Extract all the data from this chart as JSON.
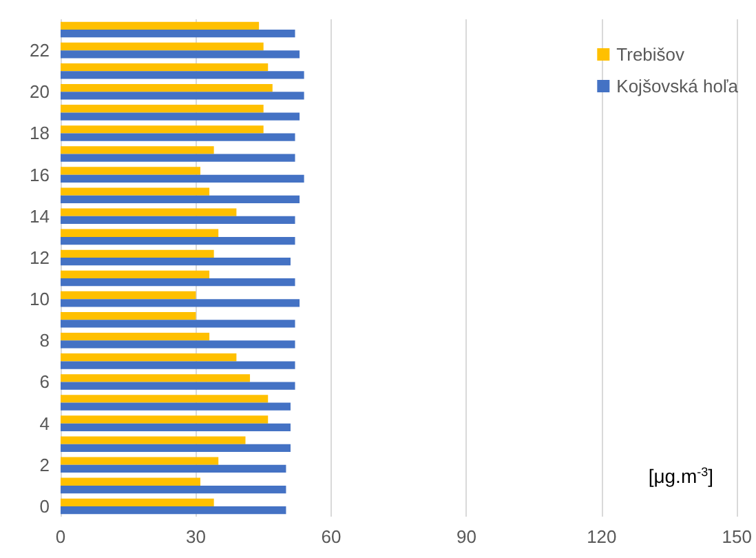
{
  "chart_data": {
    "type": "bar",
    "orientation": "horizontal",
    "categories": [
      null,
      "22",
      null,
      "20",
      null,
      "18",
      null,
      "16",
      null,
      "14",
      null,
      "12",
      null,
      "10",
      null,
      "8",
      null,
      "6",
      null,
      "4",
      null,
      "2",
      null,
      "0"
    ],
    "series": [
      {
        "name": "Trebišov",
        "color": "#ffc000",
        "values": [
          44,
          45,
          46,
          47,
          45,
          45,
          34,
          31,
          33,
          39,
          35,
          34,
          33,
          30,
          30,
          33,
          39,
          42,
          46,
          46,
          41,
          35,
          31,
          34
        ]
      },
      {
        "name": "Kojšovská hoľa",
        "color": "#4472c4",
        "values": [
          52,
          53,
          54,
          54,
          53,
          52,
          52,
          54,
          53,
          52,
          52,
          51,
          52,
          53,
          52,
          52,
          52,
          52,
          51,
          51,
          51,
          50,
          50,
          50
        ]
      }
    ],
    "xlim": [
      0,
      150
    ],
    "xticks": [
      0,
      30,
      60,
      90,
      120,
      150
    ],
    "grid": "x",
    "legend": "top right",
    "annotations": [
      "[μg.m$^{-3}$]"
    ]
  }
}
